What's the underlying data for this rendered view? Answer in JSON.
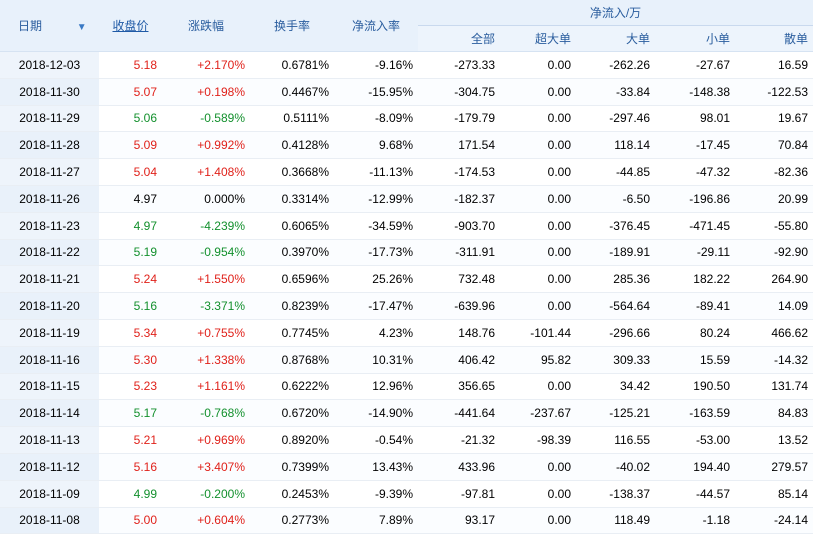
{
  "headers": {
    "date": "日期",
    "sort_icon": "sort-down-arrow",
    "close": "收盘价",
    "change": "涨跌幅",
    "turnover": "换手率",
    "net_rate": "净流入率",
    "net_flow_group": "净流入/万",
    "all": "全部",
    "xl": "超大单",
    "large": "大单",
    "small": "小单",
    "retail": "散单"
  },
  "colors": {
    "up": "#e0211a",
    "down": "#13902d",
    "header_text": "#2a5d9e",
    "header_bg": "#e8f1fb"
  },
  "rows": [
    {
      "date": "2018-12-03",
      "close": "5.18",
      "change": "+2.170%",
      "turnover": "0.6781%",
      "net_rate": "-9.16%",
      "all": "-273.33",
      "xl": "0.00",
      "large": "-262.26",
      "small": "-27.67",
      "retail": "16.59",
      "dir": "up"
    },
    {
      "date": "2018-11-30",
      "close": "5.07",
      "change": "+0.198%",
      "turnover": "0.4467%",
      "net_rate": "-15.95%",
      "all": "-304.75",
      "xl": "0.00",
      "large": "-33.84",
      "small": "-148.38",
      "retail": "-122.53",
      "dir": "up"
    },
    {
      "date": "2018-11-29",
      "close": "5.06",
      "change": "-0.589%",
      "turnover": "0.5111%",
      "net_rate": "-8.09%",
      "all": "-179.79",
      "xl": "0.00",
      "large": "-297.46",
      "small": "98.01",
      "retail": "19.67",
      "dir": "down"
    },
    {
      "date": "2018-11-28",
      "close": "5.09",
      "change": "+0.992%",
      "turnover": "0.4128%",
      "net_rate": "9.68%",
      "all": "171.54",
      "xl": "0.00",
      "large": "118.14",
      "small": "-17.45",
      "retail": "70.84",
      "dir": "up"
    },
    {
      "date": "2018-11-27",
      "close": "5.04",
      "change": "+1.408%",
      "turnover": "0.3668%",
      "net_rate": "-11.13%",
      "all": "-174.53",
      "xl": "0.00",
      "large": "-44.85",
      "small": "-47.32",
      "retail": "-82.36",
      "dir": "up"
    },
    {
      "date": "2018-11-26",
      "close": "4.97",
      "change": "0.000%",
      "turnover": "0.3314%",
      "net_rate": "-12.99%",
      "all": "-182.37",
      "xl": "0.00",
      "large": "-6.50",
      "small": "-196.86",
      "retail": "20.99",
      "dir": "flat"
    },
    {
      "date": "2018-11-23",
      "close": "4.97",
      "change": "-4.239%",
      "turnover": "0.6065%",
      "net_rate": "-34.59%",
      "all": "-903.70",
      "xl": "0.00",
      "large": "-376.45",
      "small": "-471.45",
      "retail": "-55.80",
      "dir": "down"
    },
    {
      "date": "2018-11-22",
      "close": "5.19",
      "change": "-0.954%",
      "turnover": "0.3970%",
      "net_rate": "-17.73%",
      "all": "-311.91",
      "xl": "0.00",
      "large": "-189.91",
      "small": "-29.11",
      "retail": "-92.90",
      "dir": "down"
    },
    {
      "date": "2018-11-21",
      "close": "5.24",
      "change": "+1.550%",
      "turnover": "0.6596%",
      "net_rate": "25.26%",
      "all": "732.48",
      "xl": "0.00",
      "large": "285.36",
      "small": "182.22",
      "retail": "264.90",
      "dir": "up"
    },
    {
      "date": "2018-11-20",
      "close": "5.16",
      "change": "-3.371%",
      "turnover": "0.8239%",
      "net_rate": "-17.47%",
      "all": "-639.96",
      "xl": "0.00",
      "large": "-564.64",
      "small": "-89.41",
      "retail": "14.09",
      "dir": "down"
    },
    {
      "date": "2018-11-19",
      "close": "5.34",
      "change": "+0.755%",
      "turnover": "0.7745%",
      "net_rate": "4.23%",
      "all": "148.76",
      "xl": "-101.44",
      "large": "-296.66",
      "small": "80.24",
      "retail": "466.62",
      "dir": "up"
    },
    {
      "date": "2018-11-16",
      "close": "5.30",
      "change": "+1.338%",
      "turnover": "0.8768%",
      "net_rate": "10.31%",
      "all": "406.42",
      "xl": "95.82",
      "large": "309.33",
      "small": "15.59",
      "retail": "-14.32",
      "dir": "up"
    },
    {
      "date": "2018-11-15",
      "close": "5.23",
      "change": "+1.161%",
      "turnover": "0.6222%",
      "net_rate": "12.96%",
      "all": "356.65",
      "xl": "0.00",
      "large": "34.42",
      "small": "190.50",
      "retail": "131.74",
      "dir": "up"
    },
    {
      "date": "2018-11-14",
      "close": "5.17",
      "change": "-0.768%",
      "turnover": "0.6720%",
      "net_rate": "-14.90%",
      "all": "-441.64",
      "xl": "-237.67",
      "large": "-125.21",
      "small": "-163.59",
      "retail": "84.83",
      "dir": "down"
    },
    {
      "date": "2018-11-13",
      "close": "5.21",
      "change": "+0.969%",
      "turnover": "0.8920%",
      "net_rate": "-0.54%",
      "all": "-21.32",
      "xl": "-98.39",
      "large": "116.55",
      "small": "-53.00",
      "retail": "13.52",
      "dir": "up"
    },
    {
      "date": "2018-11-12",
      "close": "5.16",
      "change": "+3.407%",
      "turnover": "0.7399%",
      "net_rate": "13.43%",
      "all": "433.96",
      "xl": "0.00",
      "large": "-40.02",
      "small": "194.40",
      "retail": "279.57",
      "dir": "up"
    },
    {
      "date": "2018-11-09",
      "close": "4.99",
      "change": "-0.200%",
      "turnover": "0.2453%",
      "net_rate": "-9.39%",
      "all": "-97.81",
      "xl": "0.00",
      "large": "-138.37",
      "small": "-44.57",
      "retail": "85.14",
      "dir": "down"
    },
    {
      "date": "2018-11-08",
      "close": "5.00",
      "change": "+0.604%",
      "turnover": "0.2773%",
      "net_rate": "7.89%",
      "all": "93.17",
      "xl": "0.00",
      "large": "118.49",
      "small": "-1.18",
      "retail": "-24.14",
      "dir": "up"
    }
  ]
}
